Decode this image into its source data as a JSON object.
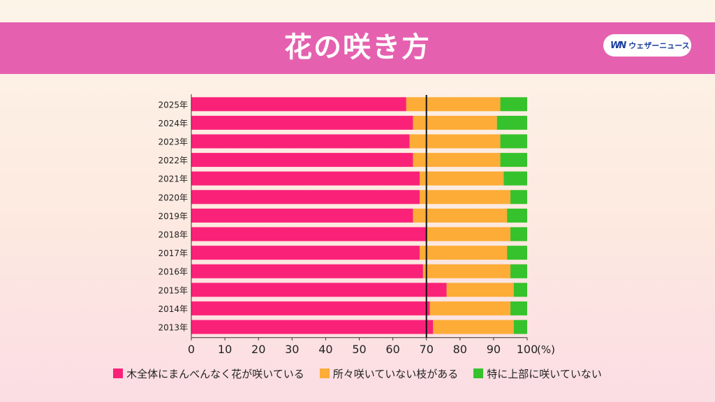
{
  "header": {
    "title": "花の咲き方",
    "brand_name": "ウェザーニュース",
    "brand_logo_text": "WN"
  },
  "colors": {
    "banner": "#e561b0",
    "full": "#fa2278",
    "partial": "#fdac37",
    "upper": "#36c22c"
  },
  "chart_data": {
    "type": "bar",
    "orientation": "horizontal",
    "stacked": true,
    "categories": [
      "2025年",
      "2024年",
      "2023年",
      "2022年",
      "2021年",
      "2020年",
      "2019年",
      "2018年",
      "2017年",
      "2016年",
      "2015年",
      "2014年",
      "2013年"
    ],
    "series": [
      {
        "name": "木全体にまんべんなく花が咲いている",
        "values": [
          64,
          66,
          65,
          66,
          68,
          68,
          66,
          70,
          68,
          69,
          76,
          71,
          72
        ]
      },
      {
        "name": "所々咲いていない枝がある",
        "values": [
          28,
          25,
          27,
          26,
          25,
          27,
          28,
          25,
          26,
          26,
          20,
          24,
          24
        ]
      },
      {
        "name": "特に上部に咲いていない",
        "values": [
          8,
          9,
          8,
          8,
          7,
          5,
          6,
          5,
          6,
          5,
          4,
          5,
          4
        ]
      }
    ],
    "xlim": [
      0,
      100
    ],
    "xticks": [
      "0",
      "10",
      "20",
      "30",
      "40",
      "50",
      "60",
      "70",
      "80",
      "90",
      "100"
    ],
    "xunit": "(%)",
    "reference_line": 70,
    "legend_position": "bottom"
  }
}
